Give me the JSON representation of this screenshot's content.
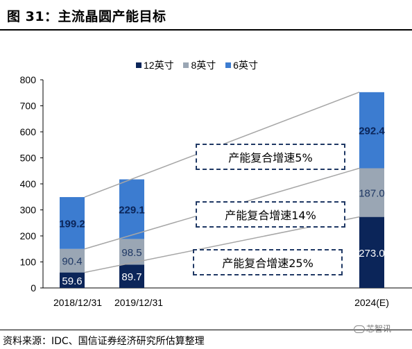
{
  "header": {
    "title": "图 31：主流晶圆产能目标"
  },
  "footer": {
    "source": "资料来源：IDC、国信证券经济研究所估算整理",
    "watermark": "芯智讯"
  },
  "annotations": [
    {
      "label": "产能复合增速5%"
    },
    {
      "label": "产能复合增速14%"
    },
    {
      "label": "产能复合增速25%"
    }
  ],
  "chart_data": {
    "type": "bar",
    "stacked": true,
    "categories": [
      "2018/12/31",
      "2019/12/31",
      "2024(E)"
    ],
    "series": [
      {
        "name": "12英寸",
        "values": [
          59.6,
          89.7,
          273.0
        ],
        "labels": [
          "59.6",
          "89.7",
          "273.0"
        ],
        "color": "#0b2559"
      },
      {
        "name": "8英寸",
        "values": [
          90.4,
          98.5,
          187.0
        ],
        "labels": [
          "90.4",
          "98.5",
          "187.0"
        ],
        "color": "#9aa6b4"
      },
      {
        "name": "6英寸",
        "values": [
          199.2,
          229.1,
          292.4
        ],
        "labels": [
          "199.2",
          "229.1",
          "292.4"
        ],
        "color": "#3c7cd0"
      }
    ],
    "title": "",
    "xlabel": "",
    "ylabel": "",
    "ylim": [
      0,
      800
    ],
    "yticks": [
      "0",
      "100",
      "200",
      "300",
      "400",
      "500",
      "600",
      "700",
      "800"
    ],
    "grid": false,
    "legend_position": "top-center",
    "trend_lines": "connect bar segment tops of first and last category"
  }
}
